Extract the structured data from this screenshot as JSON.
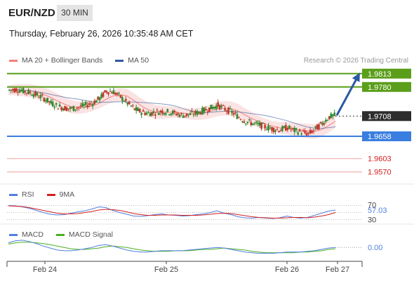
{
  "header": {
    "symbol": "EUR/NZD",
    "timeframe": "30 MIN",
    "datetime": "Thursday, February 26, 2026 10:35:48 AM CET"
  },
  "legend": {
    "ma20": {
      "label": "MA 20 + Bollinger Bands",
      "color": "#f08080"
    },
    "ma50": {
      "label": "MA 50",
      "color": "#2e5a9c"
    }
  },
  "credit": "Research © 2026 Trading Central",
  "colors": {
    "resistance": "#5a9e1a",
    "support": "#3a7ee0",
    "support_minor": "#e05a5a",
    "last": "#2d2d2d",
    "candle_up": "#2e8b2e",
    "candle_down": "#c0392b",
    "arrow": "#2a5aa0",
    "rsi": "#4f7fe0",
    "rsi_ma": "#d32020",
    "macd": "#4f7fe0",
    "macd_signal": "#4caf20"
  },
  "chart_data": {
    "type": "candlestick",
    "x_ticks": [
      "Feb 24",
      "Feb 25",
      "Feb 26",
      "Feb 27"
    ],
    "price_levels": [
      {
        "value": "1.9813",
        "kind": "resistance"
      },
      {
        "value": "1.9780",
        "kind": "resistance"
      },
      {
        "value": "1.9708",
        "kind": "last"
      },
      {
        "value": "1.9658",
        "kind": "support"
      },
      {
        "value": "1.9603",
        "kind": "support_minor"
      },
      {
        "value": "1.9570",
        "kind": "support_minor"
      }
    ],
    "ylim": [
      1.954,
      1.983
    ],
    "close_trend": [
      1.9772,
      1.9774,
      1.977,
      1.9766,
      1.976,
      1.9752,
      1.974,
      1.9732,
      1.9728,
      1.9726,
      1.973,
      1.9735,
      1.974,
      1.9752,
      1.977,
      1.9768,
      1.9755,
      1.974,
      1.9725,
      1.9718,
      1.9715,
      1.9717,
      1.972,
      1.9718,
      1.9714,
      1.971,
      1.9712,
      1.9716,
      1.9722,
      1.9728,
      1.9735,
      1.9725,
      1.9718,
      1.9705,
      1.9695,
      1.969,
      1.9686,
      1.968,
      1.9676,
      1.9674,
      1.968,
      1.9672,
      1.9668,
      1.9664,
      1.9676,
      1.969,
      1.9706,
      1.971
    ],
    "projection": {
      "from": 1.971,
      "to": 1.9813
    },
    "rsi": {
      "name": "RSI",
      "ma_name": "9MA",
      "value": "57.03",
      "levels": [
        "70",
        "30"
      ],
      "values": [
        70,
        69,
        66,
        62,
        56,
        50,
        45,
        43,
        44,
        48,
        52,
        55,
        60,
        66,
        64,
        56,
        50,
        45,
        40,
        39,
        41,
        44,
        46,
        43,
        42,
        40,
        41,
        44,
        46,
        50,
        55,
        48,
        44,
        38,
        35,
        34,
        36,
        34,
        33,
        35,
        40,
        36,
        34,
        36,
        42,
        48,
        54,
        57
      ],
      "ma_values": [
        69,
        68,
        67,
        64,
        60,
        56,
        52,
        48,
        46,
        46,
        47,
        50,
        53,
        57,
        59,
        58,
        56,
        52,
        47,
        44,
        42,
        42,
        43,
        43,
        43,
        42,
        42,
        42,
        43,
        45,
        47,
        48,
        47,
        44,
        41,
        38,
        36,
        35,
        34,
        34,
        35,
        36,
        36,
        35,
        37,
        40,
        44,
        50
      ]
    },
    "macd": {
      "name": "MACD",
      "signal_name": "MACD Signal",
      "value": "0.00",
      "values": [
        0.001,
        0.0013,
        0.0014,
        0.0012,
        0.0009,
        0.0005,
        0.0002,
        -0.0001,
        -0.0002,
        -0.0002,
        -0.0001,
        0.0001,
        0.0003,
        0.0006,
        0.0007,
        0.0005,
        0.0002,
        -0.0001,
        -0.0003,
        -0.0004,
        -0.0004,
        -0.0003,
        -0.0002,
        -0.0002,
        -0.0002,
        -0.0002,
        -0.0001,
        0.0,
        0.0001,
        0.0002,
        0.0003,
        0.0002,
        0.0,
        -0.0002,
        -0.0004,
        -0.0005,
        -0.0006,
        -0.0006,
        -0.0006,
        -0.0005,
        -0.0004,
        -0.0004,
        -0.0004,
        -0.0003,
        -0.0002,
        0.0,
        0.0002,
        0.0003
      ],
      "signal_values": [
        0.0008,
        0.001,
        0.0011,
        0.0011,
        0.001,
        0.0009,
        0.0007,
        0.0005,
        0.0003,
        0.0001,
        0.0,
        0.0,
        0.0001,
        0.0002,
        0.0004,
        0.0005,
        0.0004,
        0.0003,
        0.0001,
        -0.0001,
        -0.0002,
        -0.0003,
        -0.0003,
        -0.0003,
        -0.0002,
        -0.0002,
        -0.0002,
        -0.0001,
        0.0,
        0.0,
        0.0001,
        0.0002,
        0.0001,
        0.0,
        -0.0001,
        -0.0003,
        -0.0004,
        -0.0005,
        -0.0005,
        -0.0005,
        -0.0005,
        -0.0005,
        -0.0004,
        -0.0004,
        -0.0003,
        -0.0002,
        0.0,
        0.0001
      ]
    }
  }
}
